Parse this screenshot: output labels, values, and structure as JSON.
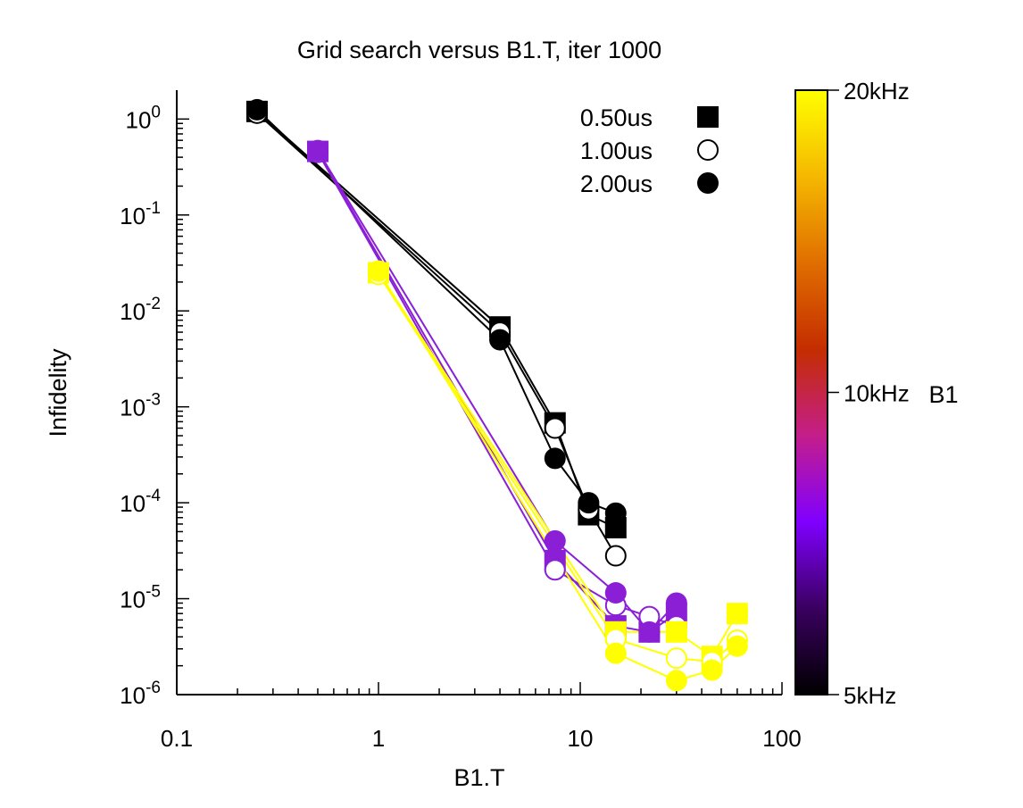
{
  "chart_data": {
    "type": "scatter",
    "title": "Grid search versus B1.T, iter 1000",
    "xlabel": "B1.T",
    "ylabel": "Infidelity",
    "x_scale": "log",
    "y_scale": "log",
    "xlim": [
      0.1,
      100
    ],
    "ylim": [
      1e-06,
      2
    ],
    "x_ticks": [
      {
        "value": 0.1,
        "label": "0.1"
      },
      {
        "value": 1,
        "label": "1"
      },
      {
        "value": 10,
        "label": "10"
      },
      {
        "value": 100,
        "label": "100"
      }
    ],
    "y_ticks": [
      {
        "value": 1e-06,
        "base": "10",
        "exp": "-6"
      },
      {
        "value": 1e-05,
        "base": "10",
        "exp": "-5"
      },
      {
        "value": 0.0001,
        "base": "10",
        "exp": "-4"
      },
      {
        "value": 0.001,
        "base": "10",
        "exp": "-3"
      },
      {
        "value": 0.01,
        "base": "10",
        "exp": "-2"
      },
      {
        "value": 0.1,
        "base": "10",
        "exp": "-1"
      },
      {
        "value": 1,
        "base": "10",
        "exp": "0"
      }
    ],
    "grid": false,
    "legend_position": "top-right",
    "legend": [
      {
        "label": "0.50us",
        "marker": "filled-square"
      },
      {
        "label": "1.00us",
        "marker": "open-circle"
      },
      {
        "label": "2.00us",
        "marker": "filled-circle"
      }
    ],
    "colorbar": {
      "label": "B1",
      "ticks": [
        {
          "value": 20,
          "label": "20kHz"
        },
        {
          "value": 10,
          "label": "10kHz"
        },
        {
          "value": 5,
          "label": "5kHz"
        }
      ],
      "range": [
        5,
        20
      ],
      "scale": "log",
      "colormap": [
        "#000000",
        "#3a0060",
        "#8000ff",
        "#c41e8a",
        "#c42d00",
        "#e06e00",
        "#f5b800",
        "#ffff00"
      ]
    },
    "series": [
      {
        "b1_khz": 5,
        "color": "#000000",
        "marker": "filled-square",
        "points": [
          [
            0.25,
            1.2
          ],
          [
            4,
            0.0068
          ],
          [
            7.5,
            0.00068
          ],
          [
            11,
            7.5e-05
          ],
          [
            15,
            5.5e-05
          ]
        ]
      },
      {
        "b1_khz": 5,
        "color": "#000000",
        "marker": "open-circle",
        "points": [
          [
            0.25,
            1.15
          ],
          [
            4,
            0.006
          ],
          [
            7.5,
            0.0006
          ],
          [
            11,
            8.5e-05
          ],
          [
            15,
            2.8e-05
          ]
        ]
      },
      {
        "b1_khz": 5,
        "color": "#000000",
        "marker": "filled-circle",
        "points": [
          [
            0.25,
            1.25
          ],
          [
            4,
            0.005
          ],
          [
            7.5,
            0.00029
          ],
          [
            11,
            0.0001
          ],
          [
            15,
            7.8e-05
          ]
        ]
      },
      {
        "b1_khz": 10,
        "color": "#8a1fd6",
        "marker": "filled-square",
        "points": [
          [
            0.5,
            0.46
          ],
          [
            7.5,
            2.5e-05
          ],
          [
            15,
            5.2e-06
          ],
          [
            22,
            4.5e-06
          ],
          [
            30,
            7e-06
          ]
        ]
      },
      {
        "b1_khz": 10,
        "color": "#8a1fd6",
        "marker": "open-circle",
        "points": [
          [
            0.5,
            0.45
          ],
          [
            7.5,
            2e-05
          ],
          [
            15,
            8.5e-06
          ],
          [
            22,
            6.5e-06
          ],
          [
            30,
            5.2e-06
          ]
        ]
      },
      {
        "b1_khz": 10,
        "color": "#8a1fd6",
        "marker": "filled-circle",
        "points": [
          [
            0.5,
            0.47
          ],
          [
            7.5,
            4e-05
          ],
          [
            15,
            1.15e-05
          ],
          [
            22,
            4.5e-06
          ],
          [
            30,
            9e-06
          ]
        ]
      },
      {
        "b1_khz": 20,
        "color": "#ffff00",
        "marker": "filled-square",
        "points": [
          [
            1,
            0.025
          ],
          [
            15,
            4.5e-06
          ],
          [
            30,
            4.5e-06
          ],
          [
            45,
            2.5e-06
          ],
          [
            60,
            7e-06
          ]
        ]
      },
      {
        "b1_khz": 20,
        "color": "#ffff00",
        "marker": "open-circle",
        "points": [
          [
            1,
            0.024
          ],
          [
            15,
            3.8e-06
          ],
          [
            30,
            2.4e-06
          ],
          [
            45,
            2.2e-06
          ],
          [
            60,
            3.7e-06
          ]
        ]
      },
      {
        "b1_khz": 20,
        "color": "#ffff00",
        "marker": "filled-circle",
        "points": [
          [
            1,
            0.026
          ],
          [
            15,
            2.7e-06
          ],
          [
            30,
            1.4e-06
          ],
          [
            45,
            1.8e-06
          ],
          [
            60,
            3.2e-06
          ]
        ]
      }
    ]
  }
}
